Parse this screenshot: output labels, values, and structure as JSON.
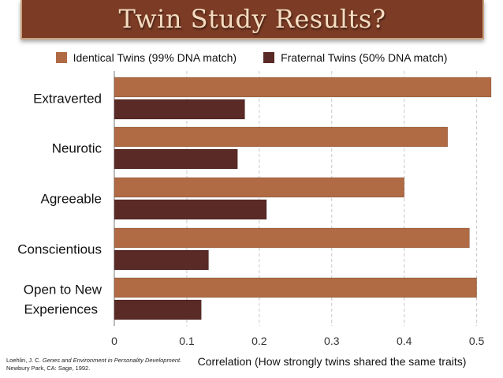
{
  "title": "Twin Study Results?",
  "legend": [
    {
      "label": "Identical Twins (99% DNA match)",
      "color": "#b06a44"
    },
    {
      "label": "Fraternal Twins (50% DNA match)",
      "color": "#5a2a26"
    }
  ],
  "citation": {
    "author": "Loehlin, J. C.",
    "book": "Genes and Environment in Personality Development.",
    "publisher": "Newbury Park, CA: Sage, 1992."
  },
  "chart_data": {
    "type": "bar",
    "orientation": "horizontal",
    "categories": [
      "Extraverted",
      "Neurotic",
      "Agreeable",
      "Conscientious",
      "Open to New Experiences"
    ],
    "series": [
      {
        "name": "Identical Twins (99% DNA match)",
        "values": [
          0.52,
          0.46,
          0.4,
          0.49,
          0.5
        ],
        "color": "#b06a44"
      },
      {
        "name": "Fraternal Twins (50% DNA match)",
        "values": [
          0.18,
          0.17,
          0.21,
          0.13,
          0.12
        ],
        "color": "#5a2a26"
      }
    ],
    "xlabel": "Correlation (How strongly twins shared the same traits)",
    "xlim": [
      0,
      0.52
    ],
    "xticks": [
      0,
      0.1,
      0.2,
      0.3,
      0.4,
      0.5
    ],
    "xtick_labels": [
      "0",
      "0.1",
      "0.2",
      "0.3",
      "0.4",
      "0.5"
    ],
    "grid": "vertical dashed",
    "legend_position": "top"
  }
}
